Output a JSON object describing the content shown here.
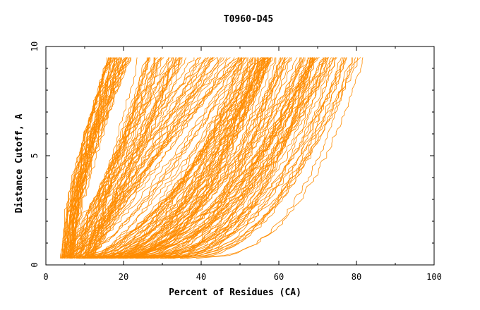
{
  "chart_data": {
    "type": "line",
    "title": "T0960-D45",
    "xlabel": "Percent of Residues (CA)",
    "ylabel": "Distance Cutoff, A",
    "xlim": [
      0,
      100
    ],
    "ylim": [
      0,
      10
    ],
    "xticks": [
      "0",
      "20",
      "40",
      "60",
      "80",
      "100"
    ],
    "yticks": [
      "0",
      "5",
      "10"
    ],
    "grid": false,
    "line_color": "#ff8c00",
    "series_groups": [
      {
        "count": 40,
        "x_at_min": [
          3.5,
          7.0
        ],
        "x_at_max": [
          15.5,
          22.0
        ],
        "curve": [
          0.55,
          0.85
        ]
      },
      {
        "count": 60,
        "x_at_min": [
          4.0,
          12.0
        ],
        "x_at_max": [
          22.0,
          52.0
        ],
        "curve": [
          0.7,
          1.4
        ]
      },
      {
        "count": 40,
        "x_at_min": [
          6.0,
          25.0
        ],
        "x_at_max": [
          50.0,
          58.0
        ],
        "curve": [
          1.2,
          2.0
        ]
      },
      {
        "count": 60,
        "x_at_min": [
          8.0,
          35.0
        ],
        "x_at_max": [
          56.0,
          74.0
        ],
        "curve": [
          1.6,
          2.8
        ]
      },
      {
        "count": 15,
        "x_at_min": [
          15.0,
          40.0
        ],
        "x_at_max": [
          74.0,
          82.0
        ],
        "curve": [
          2.4,
          3.0
        ]
      }
    ],
    "y_range_of_curves": [
      0.3,
      9.5
    ]
  }
}
